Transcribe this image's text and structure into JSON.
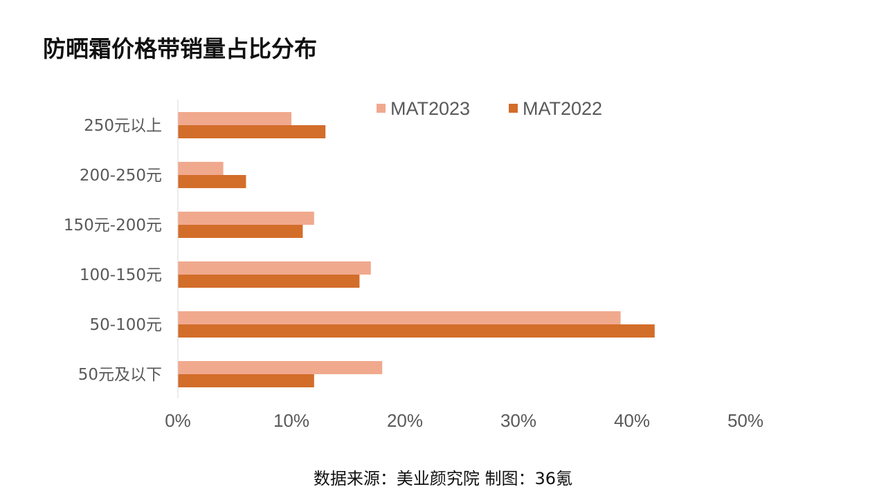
{
  "title": "防晒霜价格带销量占比分布",
  "source": "数据来源：美业颜究院 制图：36氪",
  "colors": {
    "MAT2023": "#F1A98E",
    "MAT2022": "#D36D2A",
    "axis": "#D9D9D9",
    "text": "#595959"
  },
  "chart_data": {
    "type": "bar",
    "orientation": "horizontal",
    "categories": [
      "250元以上",
      "200-250元",
      "150元-200元",
      "100-150元",
      "50-100元",
      "50元及以下"
    ],
    "series": [
      {
        "name": "MAT2023",
        "values": [
          10,
          4,
          12,
          17,
          39,
          18
        ]
      },
      {
        "name": "MAT2022",
        "values": [
          13,
          6,
          11,
          16,
          42,
          12
        ]
      }
    ],
    "xlim": [
      0,
      50
    ],
    "xticks": [
      "0%",
      "10%",
      "20%",
      "30%",
      "40%",
      "50%"
    ],
    "unit": "%",
    "legend": "top",
    "grid": false
  }
}
